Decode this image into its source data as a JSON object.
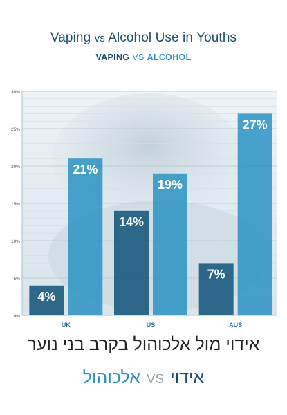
{
  "title": {
    "main_a": "Vaping",
    "vs": "vs",
    "main_b": "Alcohol Use in Youths"
  },
  "subtitle": {
    "vaping": "VAPING",
    "vs": "VS",
    "alcohol": "ALCOHOL"
  },
  "hebrew": {
    "title": "אידוי מול אלכוהול בקרב בני נוער",
    "sub_vaping": "אידוי",
    "sub_vs": "VS",
    "sub_alcohol": "אלכוהול"
  },
  "colors": {
    "vaping": "#1a5a7e",
    "alcohol": "#2a93c2",
    "title": "#1f4f6b"
  },
  "chart_data": {
    "type": "bar",
    "categories": [
      "UK",
      "US",
      "AUS"
    ],
    "series": [
      {
        "name": "VAPING",
        "values": [
          4,
          14,
          7
        ],
        "labels": [
          "4%",
          "14%",
          "7%"
        ]
      },
      {
        "name": "ALCOHOL",
        "values": [
          21,
          19,
          27
        ],
        "labels": [
          "21%",
          "19%",
          "27%"
        ]
      }
    ],
    "ylim": [
      0,
      30
    ],
    "yticks": [
      "0%",
      "5%",
      "10%",
      "15%",
      "20%",
      "25%",
      "30%"
    ],
    "grid": true
  }
}
